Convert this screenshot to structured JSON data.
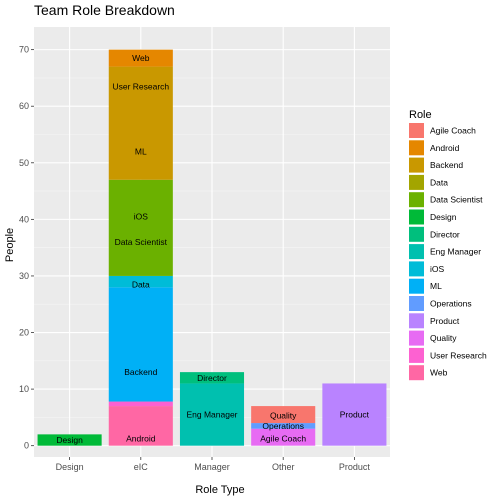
{
  "chart_data": {
    "type": "bar",
    "stacked": true,
    "title": "Team Role Breakdown",
    "xlabel": "Role Type",
    "ylabel": "People",
    "ylim": [
      -2,
      74
    ],
    "yticks": [
      0,
      10,
      20,
      30,
      40,
      50,
      60,
      70
    ],
    "categories": [
      "Design",
      "eIC",
      "Manager",
      "Other",
      "Product"
    ],
    "legend": {
      "title": "Role",
      "position": "right",
      "entries": [
        {
          "name": "Agile Coach",
          "color": "#F8766D"
        },
        {
          "name": "Android",
          "color": "#E58700"
        },
        {
          "name": "Backend",
          "color": "#C99800"
        },
        {
          "name": "Data",
          "color": "#A3A500"
        },
        {
          "name": "Data Scientist",
          "color": "#6BB100"
        },
        {
          "name": "Design",
          "color": "#00BA38"
        },
        {
          "name": "Director",
          "color": "#00BF7D"
        },
        {
          "name": "Eng Manager",
          "color": "#00C0AF"
        },
        {
          "name": "iOS",
          "color": "#00BCD8"
        },
        {
          "name": "ML",
          "color": "#00B0F6"
        },
        {
          "name": "Operations",
          "color": "#619CFF"
        },
        {
          "name": "Product",
          "color": "#B983FF"
        },
        {
          "name": "Quality",
          "color": "#E76BF3"
        },
        {
          "name": "User Research",
          "color": "#FD61D1"
        },
        {
          "name": "Web",
          "color": "#FF67A4"
        }
      ]
    },
    "bars": [
      {
        "category": "Design",
        "segments": [
          {
            "role": "Design",
            "value": 2,
            "color": "#00BA38",
            "label": "Design"
          }
        ]
      },
      {
        "category": "eIC",
        "segments": [
          {
            "role": "Web",
            "value": 7,
            "color": "#FF67A4",
            "label": "Android"
          },
          {
            "role": "User Research",
            "value": 0.8,
            "color": "#FD61D1",
            "label": ""
          },
          {
            "role": "ML",
            "value": 20.2,
            "color": "#00B0F6",
            "label": "Backend"
          },
          {
            "role": "iOS",
            "value": 2,
            "color": "#00BCD8",
            "label": "Data"
          },
          {
            "role": "Data Scientist",
            "value": 17,
            "color": "#6BB100",
            "label": "Data Scientist"
          },
          {
            "role": "Data",
            "value": 0,
            "color": "#A3A500",
            "label": "iOS"
          },
          {
            "role": "Backend",
            "value": 20,
            "color": "#C99800",
            "label": "ML"
          },
          {
            "role": "Android",
            "value": 3,
            "color": "#E58700",
            "label": "User Research"
          },
          {
            "role": "Android",
            "value": 0,
            "color": "#E58700",
            "label": "Web"
          }
        ]
      },
      {
        "category": "Manager",
        "segments": [
          {
            "role": "Eng Manager",
            "value": 11,
            "color": "#00C0AF",
            "label": "Eng Manager"
          },
          {
            "role": "Director",
            "value": 2,
            "color": "#00BF7D",
            "label": "Director"
          }
        ]
      },
      {
        "category": "Other",
        "segments": [
          {
            "role": "Quality",
            "value": 3,
            "color": "#E76BF3",
            "label": "Agile Coach"
          },
          {
            "role": "Operations",
            "value": 1,
            "color": "#619CFF",
            "label": "Operations"
          },
          {
            "role": "Agile Coach",
            "value": 3,
            "color": "#F8766D",
            "label": "Quality"
          }
        ]
      },
      {
        "category": "Product",
        "segments": [
          {
            "role": "Product",
            "value": 11,
            "color": "#B983FF",
            "label": "Product"
          }
        ]
      }
    ],
    "segment_labels": [
      {
        "category": "eIC",
        "text": "Android",
        "y": 1.3
      },
      {
        "category": "eIC",
        "text": "Backend",
        "y": 13
      },
      {
        "category": "eIC",
        "text": "Data",
        "y": 28.5
      },
      {
        "category": "eIC",
        "text": "Data Scientist",
        "y": 36
      },
      {
        "category": "eIC",
        "text": "iOS",
        "y": 40.5
      },
      {
        "category": "eIC",
        "text": "ML",
        "y": 52
      },
      {
        "category": "eIC",
        "text": "User Research",
        "y": 63.5
      },
      {
        "category": "eIC",
        "text": "Web",
        "y": 68.5
      },
      {
        "category": "Design",
        "text": "Design",
        "y": 1
      },
      {
        "category": "Manager",
        "text": "Eng Manager",
        "y": 5.5
      },
      {
        "category": "Manager",
        "text": "Director",
        "y": 12
      },
      {
        "category": "Other",
        "text": "Agile Coach",
        "y": 1.3
      },
      {
        "category": "Other",
        "text": "Operations",
        "y": 3.5
      },
      {
        "category": "Other",
        "text": "Quality",
        "y": 5.3
      },
      {
        "category": "Product",
        "text": "Product",
        "y": 5.5
      }
    ],
    "grid": true,
    "background": "#EBEBEB"
  }
}
